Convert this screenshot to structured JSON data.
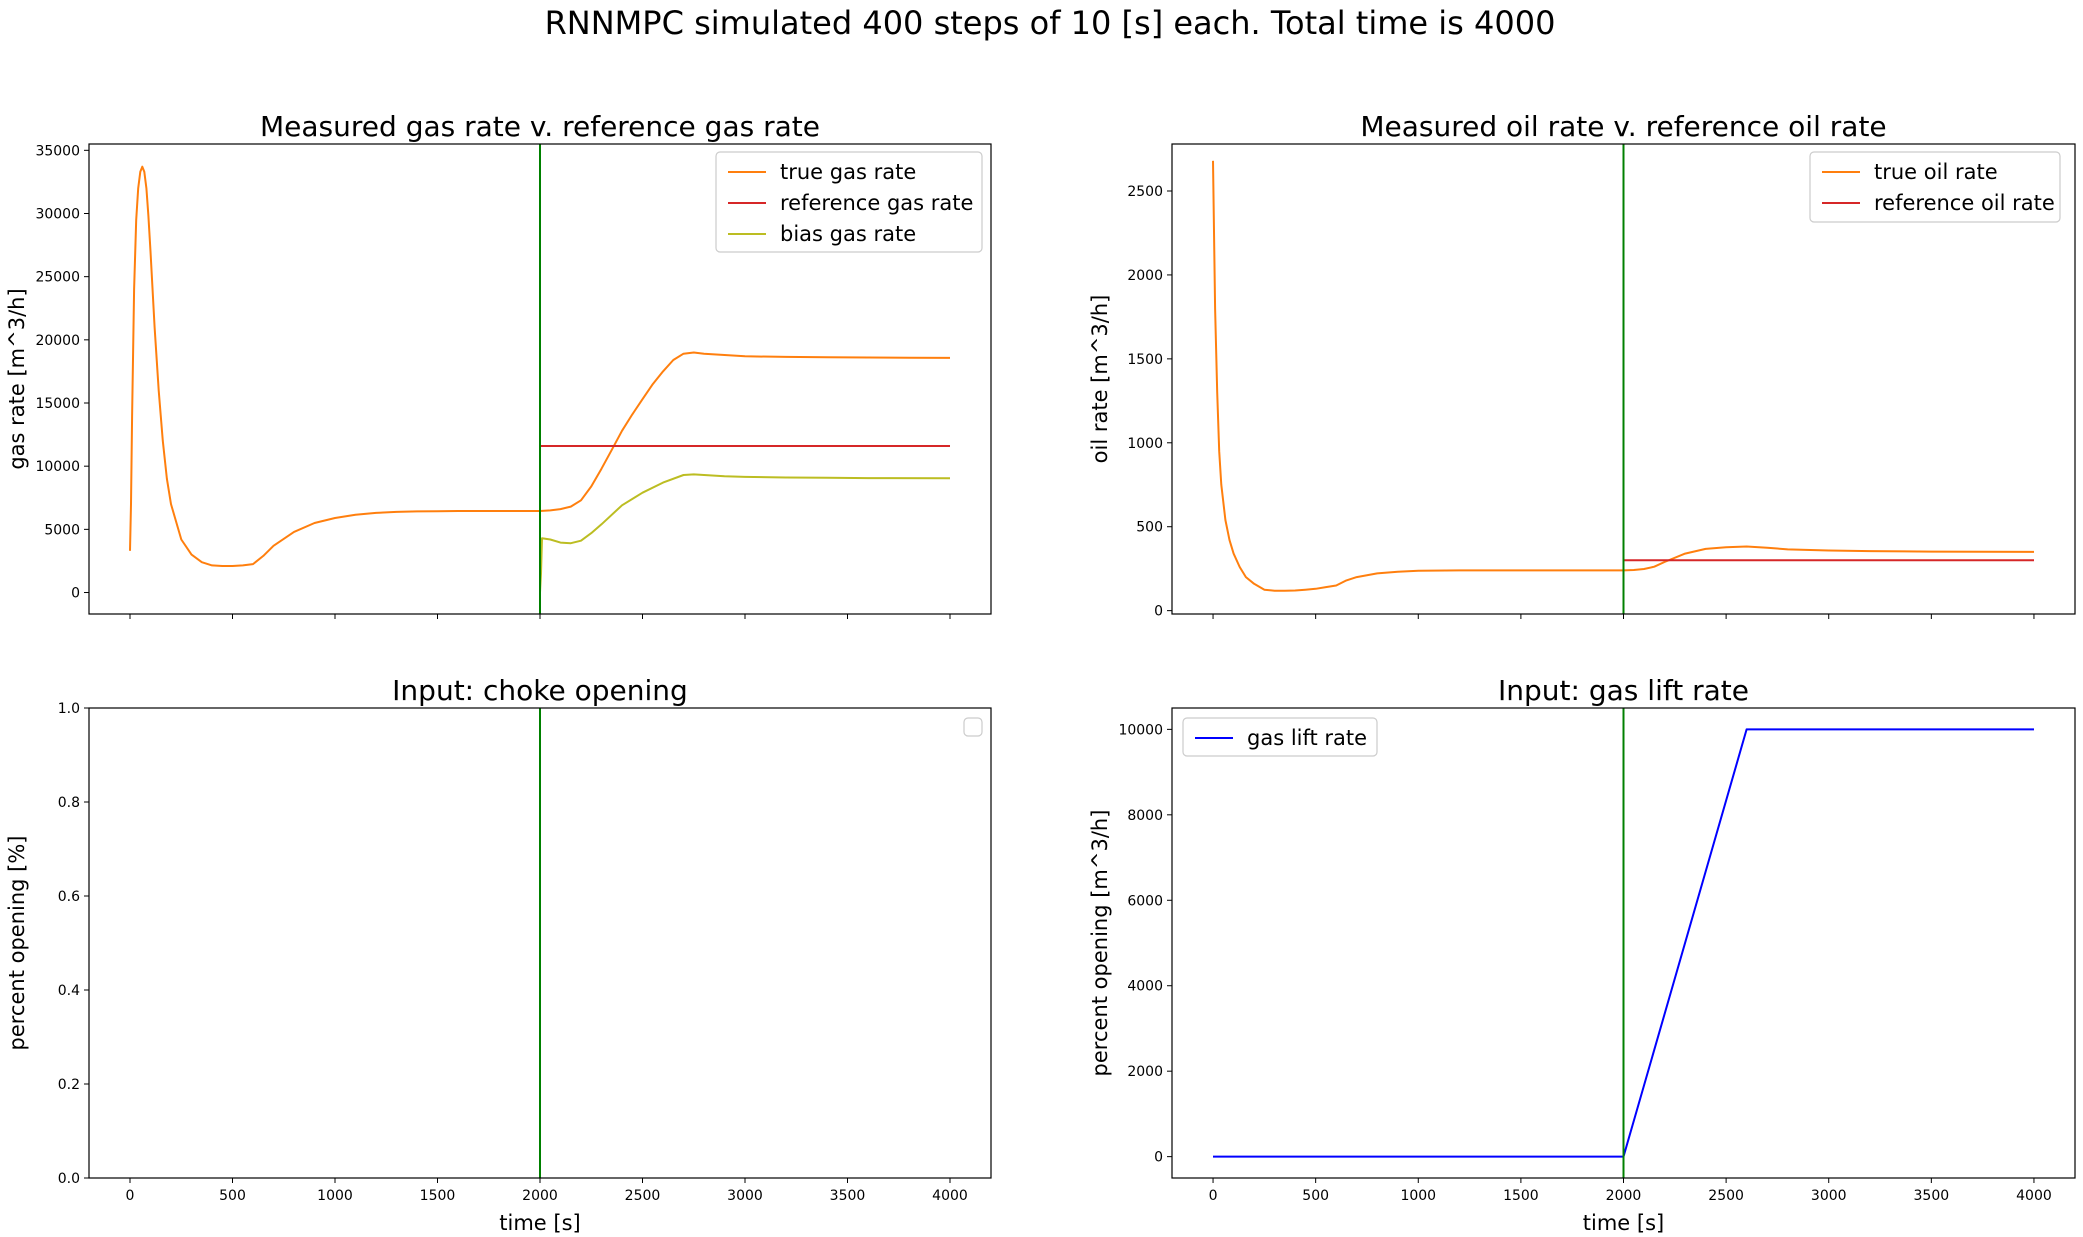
{
  "figure": {
    "suptitle": "RNNMPC simulated 400 steps of 10 [s] each. Total time is 4000"
  },
  "chart_data": [
    {
      "type": "line",
      "title": "Measured gas rate v. reference gas rate",
      "xlabel": "",
      "ylabel": "gas rate [m^3/h]",
      "xlim": [
        -200,
        4200
      ],
      "ylim": [
        -1700,
        35500
      ],
      "xticks": [
        0,
        500,
        1000,
        1500,
        2000,
        2500,
        3000,
        3500,
        4000
      ],
      "xtick_labels_visible": false,
      "yticks": [
        0,
        5000,
        10000,
        15000,
        20000,
        25000,
        30000,
        35000
      ],
      "ytick_labels": [
        "0",
        "5000",
        "10000",
        "15000",
        "20000",
        "25000",
        "30000",
        "35000"
      ],
      "grid": false,
      "legend": "top-right",
      "vline": {
        "x": 2000,
        "color": "#008000"
      },
      "series": [
        {
          "name": "true gas rate",
          "color": "#ff7f0e",
          "x": [
            0,
            5,
            10,
            20,
            30,
            40,
            50,
            60,
            70,
            80,
            90,
            100,
            120,
            140,
            160,
            180,
            200,
            250,
            300,
            350,
            400,
            450,
            500,
            550,
            600,
            650,
            700,
            800,
            900,
            1000,
            1100,
            1200,
            1300,
            1400,
            1500,
            1600,
            1700,
            1800,
            1900,
            2000,
            2050,
            2100,
            2150,
            2200,
            2250,
            2300,
            2350,
            2400,
            2450,
            2500,
            2550,
            2600,
            2650,
            2700,
            2750,
            2800,
            2900,
            3000,
            3200,
            3400,
            3600,
            3800,
            4000
          ],
          "y": [
            3300,
            7000,
            14000,
            24000,
            29500,
            32000,
            33300,
            33700,
            33300,
            32000,
            29800,
            27000,
            21000,
            16000,
            12000,
            9000,
            7000,
            4200,
            3000,
            2400,
            2150,
            2100,
            2100,
            2150,
            2250,
            2900,
            3700,
            4800,
            5500,
            5900,
            6150,
            6300,
            6380,
            6420,
            6440,
            6450,
            6450,
            6450,
            6450,
            6450,
            6500,
            6600,
            6800,
            7300,
            8400,
            9800,
            11300,
            12800,
            14100,
            15300,
            16500,
            17500,
            18400,
            18900,
            19000,
            18900,
            18800,
            18700,
            18650,
            18620,
            18600,
            18580,
            18570
          ]
        },
        {
          "name": "reference gas rate",
          "color": "#d62728",
          "x": [
            2000,
            4000
          ],
          "y": [
            11600,
            11600
          ]
        },
        {
          "name": "bias gas rate",
          "color": "#bcbd22",
          "x": [
            2000,
            2005,
            2010,
            2050,
            2100,
            2150,
            2200,
            2250,
            2300,
            2400,
            2500,
            2600,
            2700,
            2750,
            2800,
            2900,
            3000,
            3200,
            3400,
            3600,
            4000
          ],
          "y": [
            0,
            1500,
            4300,
            4200,
            3950,
            3900,
            4100,
            4700,
            5400,
            6900,
            7900,
            8700,
            9300,
            9350,
            9300,
            9200,
            9150,
            9100,
            9080,
            9060,
            9050
          ]
        }
      ]
    },
    {
      "type": "line",
      "title": "Measured oil rate v. reference oil rate",
      "xlabel": "",
      "ylabel": "oil rate [m^3/h]",
      "xlim": [
        -200,
        4200
      ],
      "ylim": [
        -20,
        2780
      ],
      "xticks": [
        0,
        500,
        1000,
        1500,
        2000,
        2500,
        3000,
        3500,
        4000
      ],
      "xtick_labels_visible": false,
      "yticks": [
        0,
        500,
        1000,
        1500,
        2000,
        2500
      ],
      "ytick_labels": [
        "0",
        "500",
        "1000",
        "1500",
        "2000",
        "2500"
      ],
      "grid": false,
      "legend": "top-right",
      "vline": {
        "x": 2000,
        "color": "#008000"
      },
      "series": [
        {
          "name": "true oil rate",
          "color": "#ff7f0e",
          "x": [
            0,
            10,
            20,
            30,
            40,
            60,
            80,
            100,
            130,
            160,
            200,
            250,
            300,
            350,
            400,
            450,
            500,
            550,
            600,
            650,
            700,
            800,
            900,
            1000,
            1200,
            1500,
            1800,
            2000,
            2050,
            2100,
            2150,
            2200,
            2300,
            2400,
            2500,
            2600,
            2700,
            2800,
            3000,
            3200,
            3500,
            4000
          ],
          "y": [
            2680,
            1800,
            1300,
            950,
            750,
            540,
            420,
            340,
            260,
            200,
            160,
            125,
            118,
            118,
            120,
            125,
            130,
            140,
            150,
            180,
            200,
            222,
            232,
            238,
            240,
            240,
            240,
            240,
            242,
            248,
            262,
            290,
            340,
            368,
            378,
            382,
            375,
            365,
            358,
            355,
            352,
            350
          ]
        },
        {
          "name": "reference oil rate",
          "color": "#d62728",
          "x": [
            2000,
            4000
          ],
          "y": [
            300,
            300
          ]
        }
      ]
    },
    {
      "type": "line",
      "title": "Input: choke opening",
      "xlabel": "time [s]",
      "ylabel": "percent opening [%]",
      "xlim": [
        -200,
        4200
      ],
      "ylim": [
        0,
        1
      ],
      "xticks": [
        0,
        500,
        1000,
        1500,
        2000,
        2500,
        3000,
        3500,
        4000
      ],
      "xtick_labels": [
        "0",
        "500",
        "1000",
        "1500",
        "2000",
        "2500",
        "3000",
        "3500",
        "4000"
      ],
      "yticks": [
        0,
        0.2,
        0.4,
        0.6,
        0.8,
        1.0
      ],
      "ytick_labels": [
        "0.0",
        "0.2",
        "0.4",
        "0.6",
        "0.8",
        "1.0"
      ],
      "grid": false,
      "legend": "top-right (empty)",
      "vline": {
        "x": 2000,
        "color": "#008000"
      },
      "series": []
    },
    {
      "type": "line",
      "title": "Input: gas lift rate",
      "xlabel": "time [s]",
      "ylabel": "percent opening [m^3/h]",
      "xlim": [
        -200,
        4200
      ],
      "ylim": [
        -500,
        10500
      ],
      "xticks": [
        0,
        500,
        1000,
        1500,
        2000,
        2500,
        3000,
        3500,
        4000
      ],
      "xtick_labels": [
        "0",
        "500",
        "1000",
        "1500",
        "2000",
        "2500",
        "3000",
        "3500",
        "4000"
      ],
      "yticks": [
        0,
        2000,
        4000,
        6000,
        8000,
        10000
      ],
      "ytick_labels": [
        "0",
        "2000",
        "4000",
        "6000",
        "8000",
        "10000"
      ],
      "grid": false,
      "legend": "top-left",
      "vline": {
        "x": 2000,
        "color": "#008000"
      },
      "series": [
        {
          "name": "gas lift rate",
          "color": "#0000ff",
          "x": [
            0,
            2000,
            2600,
            4000
          ],
          "y": [
            0,
            0,
            10000,
            10000
          ]
        }
      ]
    }
  ]
}
